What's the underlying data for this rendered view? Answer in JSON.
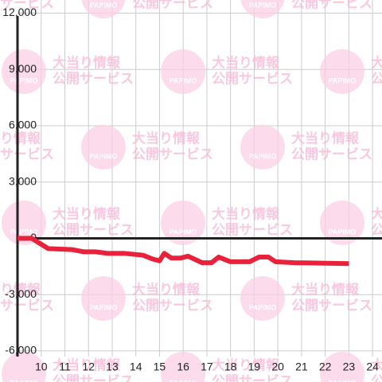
{
  "chart_data": {
    "type": "line",
    "watermark": {
      "logo": "PAPIMO",
      "lines": [
        "大当り情報",
        "公開サービス"
      ]
    },
    "x": [
      9,
      9.6,
      10.3,
      11.3,
      11.8,
      12.3,
      12.8,
      13.5,
      14.3,
      14.7,
      15,
      15.2,
      15.5,
      15.9,
      16.2,
      16.8,
      17.2,
      17.5,
      18,
      18.8,
      19.2,
      19.6,
      19.9,
      20.7,
      23
    ],
    "series": [
      {
        "color": "#e8223a",
        "values": [
          0,
          0,
          -550,
          -600,
          -720,
          -720,
          -800,
          -800,
          -900,
          -1100,
          -1200,
          -800,
          -1050,
          -1050,
          -950,
          -1300,
          -1300,
          -1000,
          -1250,
          -1250,
          -1000,
          -1000,
          -1250,
          -1300,
          -1350
        ]
      }
    ],
    "xlim": [
      9,
      24.4
    ],
    "xticks": [
      10,
      11,
      12,
      13,
      14,
      15,
      16,
      17,
      18,
      19,
      20,
      21,
      22,
      23,
      24
    ],
    "ylim": [
      -6300,
      12700
    ],
    "yticks": [
      {
        "value": 12000,
        "label": "12,000"
      },
      {
        "value": 9000,
        "label": "9,000"
      },
      {
        "value": 6000,
        "label": "6,000"
      },
      {
        "value": 3000,
        "label": "3,000"
      },
      0,
      {
        "value": -3000,
        "label": "-3,000"
      },
      {
        "value": -6000,
        "label": "-6,000"
      }
    ],
    "grid": true
  }
}
